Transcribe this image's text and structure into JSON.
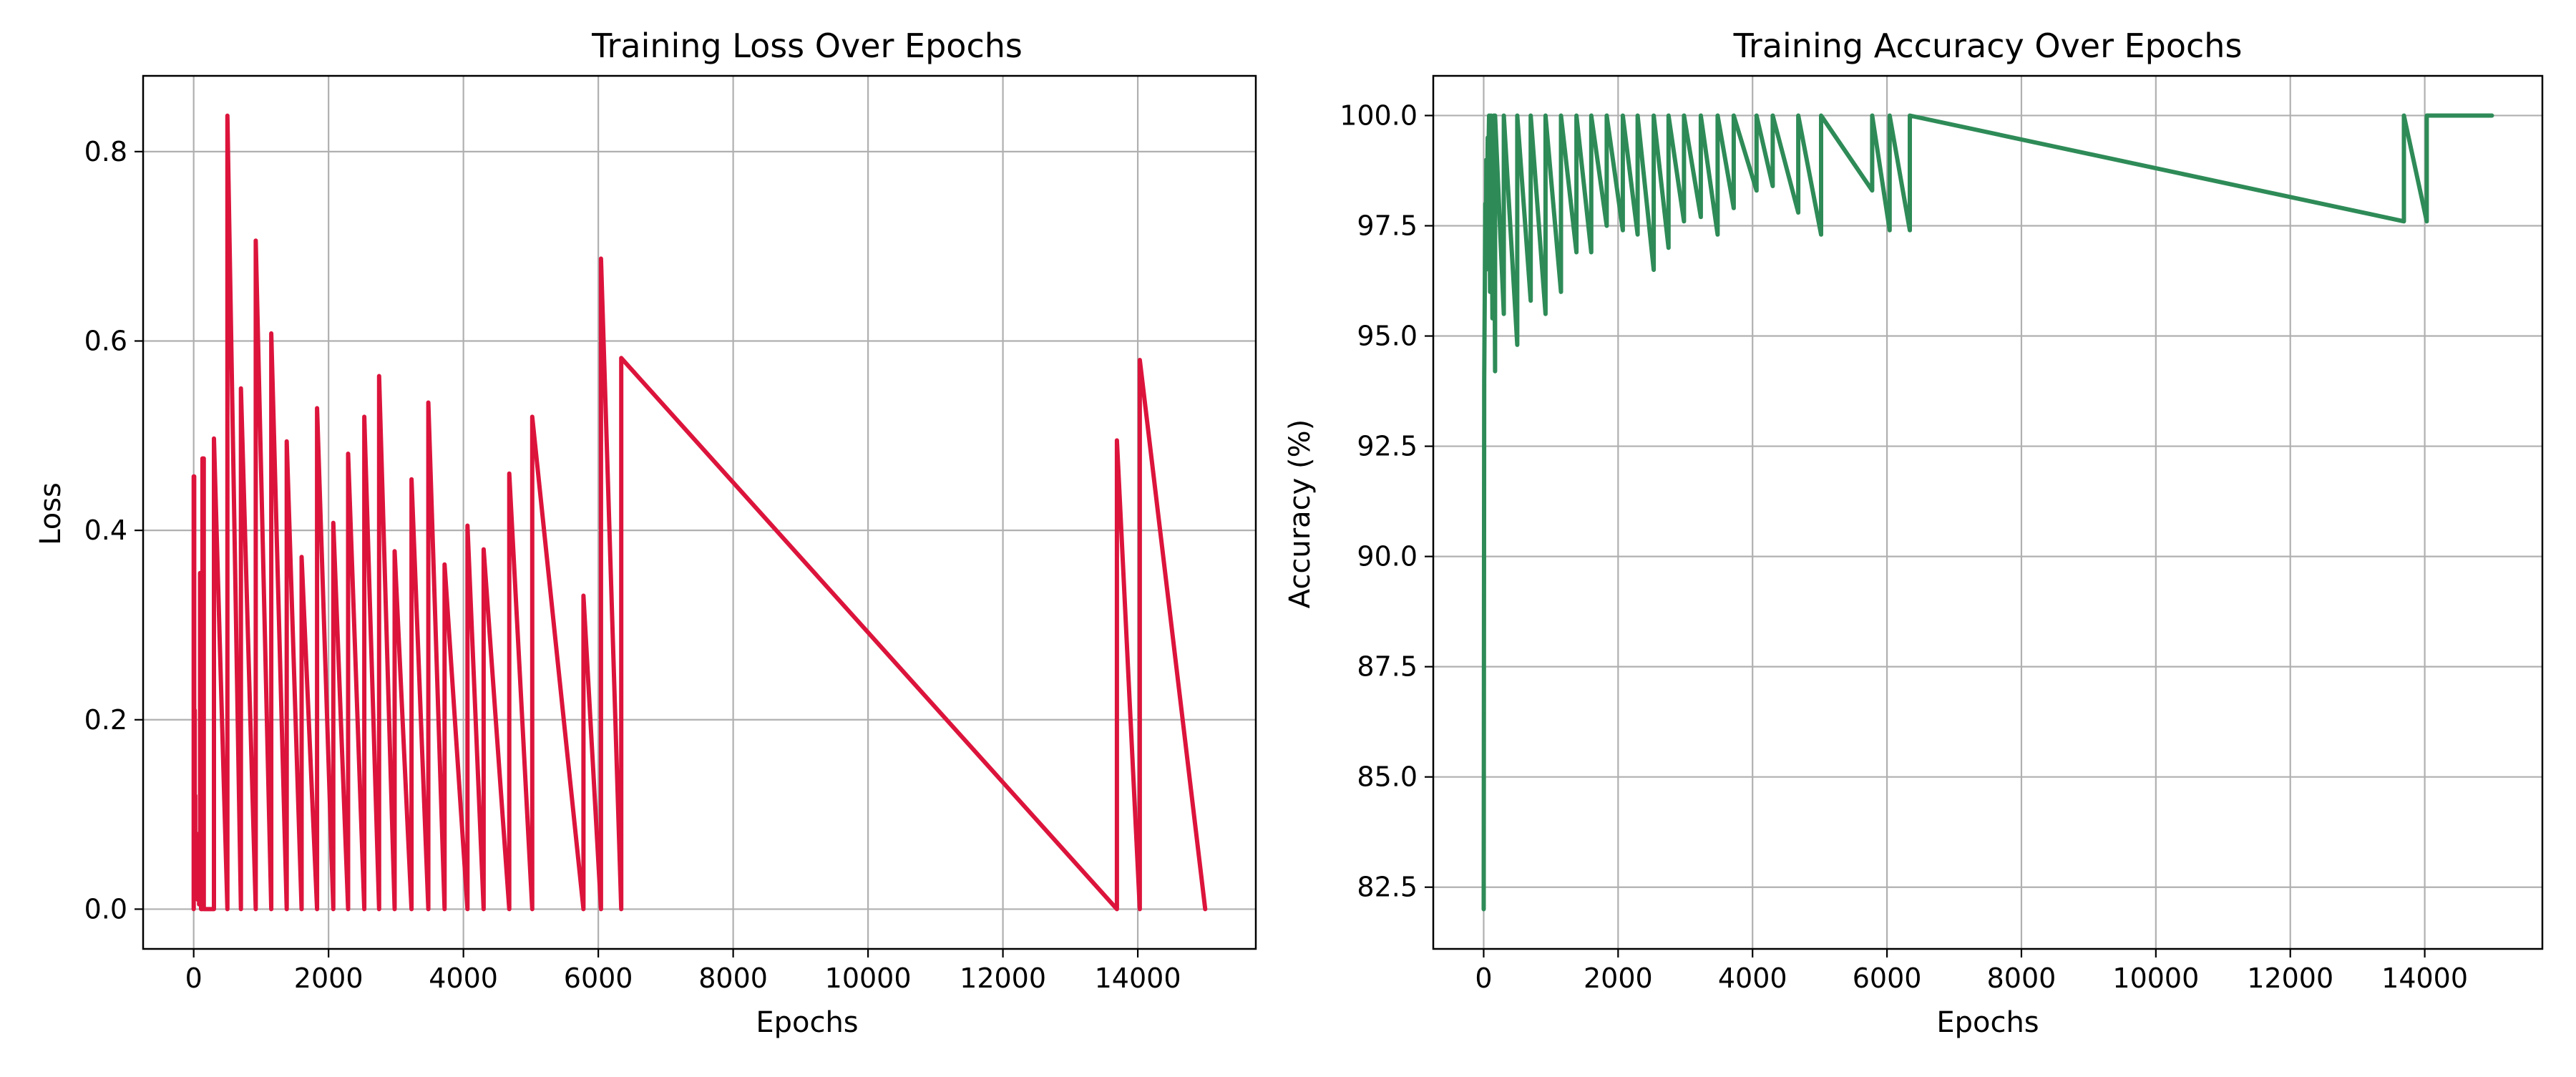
{
  "chart_data": [
    {
      "type": "line",
      "title": "Training Loss Over Epochs",
      "xlabel": "Epochs",
      "ylabel": "Loss",
      "xlim": [
        -750,
        15750
      ],
      "ylim": [
        -0.042,
        0.88
      ],
      "xticks": [
        0,
        2000,
        4000,
        6000,
        8000,
        10000,
        12000,
        14000
      ],
      "yticks": [
        0.0,
        0.2,
        0.4,
        0.6,
        0.8
      ],
      "ytick_labels": [
        "0.0",
        "0.2",
        "0.4",
        "0.6",
        "0.8"
      ],
      "grid": true,
      "color": "#dc143c",
      "series": [
        {
          "x": [
            0,
            0,
            8,
            8,
            16,
            16,
            24,
            24,
            32,
            32,
            40,
            40,
            50,
            50,
            60,
            60,
            70,
            70,
            80,
            80,
            95,
            95,
            110,
            110,
            130,
            130,
            150,
            150,
            170,
            170,
            300,
            300,
            500,
            500,
            700,
            700,
            920,
            920,
            1150,
            1150,
            1380,
            1380,
            1600,
            1600,
            1830,
            1830,
            2070,
            2070,
            2290,
            2290,
            2530,
            2530,
            2750,
            2750,
            2980,
            2980,
            3230,
            3230,
            3480,
            3480,
            3720,
            3720,
            4060,
            4060,
            4300,
            4300,
            4680,
            4680,
            5020,
            5020,
            5780,
            5780,
            6040,
            6040,
            6340,
            6340,
            13690,
            13690,
            14030,
            14030,
            15000
          ],
          "y": [
            0.0,
            0.457,
            0.457,
            0.21,
            0.21,
            0.12,
            0.12,
            0.06,
            0.06,
            0.08,
            0.08,
            0.03,
            0.03,
            0.05,
            0.05,
            0.01,
            0.01,
            0.02,
            0.02,
            0.005,
            0.005,
            0.355,
            0.355,
            0.0,
            0.0,
            0.476,
            0.476,
            0.0,
            0.0,
            0.0,
            0.0,
            0.497,
            0.0,
            0.838,
            0.0,
            0.55,
            0.0,
            0.706,
            0.0,
            0.608,
            0.0,
            0.494,
            0.0,
            0.372,
            0.0,
            0.529,
            0.0,
            0.408,
            0.0,
            0.481,
            0.0,
            0.52,
            0.0,
            0.563,
            0.0,
            0.378,
            0.0,
            0.454,
            0.0,
            0.535,
            0.0,
            0.364,
            0.0,
            0.405,
            0.0,
            0.38,
            0.0,
            0.46,
            0.0,
            0.52,
            0.0,
            0.331,
            0.0,
            0.687,
            0.0,
            0.582,
            0.0,
            0.495,
            0.0,
            0.58,
            0.0
          ]
        }
      ]
    },
    {
      "type": "line",
      "title": "Training Accuracy Over Epochs",
      "xlabel": "Epochs",
      "ylabel": "Accuracy (%)",
      "xlim": [
        -750,
        15750
      ],
      "ylim": [
        81.1,
        100.9
      ],
      "xticks": [
        0,
        2000,
        4000,
        6000,
        8000,
        10000,
        12000,
        14000
      ],
      "yticks": [
        82.5,
        85.0,
        87.5,
        90.0,
        92.5,
        95.0,
        97.5,
        100.0
      ],
      "ytick_labels": [
        "82.5",
        "85.0",
        "87.5",
        "90.0",
        "92.5",
        "95.0",
        "97.5",
        "100.0"
      ],
      "grid": true,
      "color": "#2e8b57",
      "series": [
        {
          "x": [
            0,
            0,
            8,
            8,
            16,
            16,
            24,
            24,
            32,
            32,
            40,
            40,
            50,
            50,
            60,
            60,
            70,
            70,
            80,
            80,
            95,
            95,
            110,
            110,
            130,
            130,
            150,
            150,
            170,
            170,
            300,
            300,
            500,
            500,
            700,
            700,
            920,
            920,
            1150,
            1150,
            1380,
            1380,
            1600,
            1600,
            1830,
            1830,
            2070,
            2070,
            2290,
            2290,
            2530,
            2530,
            2750,
            2750,
            2980,
            2980,
            3230,
            3230,
            3480,
            3480,
            3720,
            3720,
            4060,
            4060,
            4300,
            4300,
            4680,
            4680,
            5020,
            5020,
            5780,
            5780,
            6040,
            6040,
            6340,
            6340,
            13690,
            13690,
            14030,
            14030,
            15000
          ],
          "y": [
            82.0,
            82.0,
            94.0,
            94.0,
            96.0,
            96.0,
            98.0,
            98.0,
            96.5,
            96.5,
            99.0,
            99.0,
            98.0,
            98.0,
            99.5,
            99.5,
            99.0,
            99.0,
            100.0,
            100.0,
            96.0,
            96.0,
            100.0,
            100.0,
            95.4,
            95.4,
            100.0,
            100.0,
            94.2,
            100.0,
            95.5,
            100.0,
            94.8,
            100.0,
            95.8,
            100.0,
            95.5,
            100.0,
            96.0,
            100.0,
            96.9,
            100.0,
            96.9,
            100.0,
            97.5,
            100.0,
            97.4,
            100.0,
            97.3,
            100.0,
            96.5,
            100.0,
            97.0,
            100.0,
            97.6,
            100.0,
            97.7,
            100.0,
            97.3,
            100.0,
            97.9,
            100.0,
            98.3,
            100.0,
            98.4,
            100.0,
            97.8,
            100.0,
            97.3,
            100.0,
            98.3,
            100.0,
            97.4,
            100.0,
            97.4,
            100.0,
            97.6,
            100.0,
            97.6,
            100.0,
            100.0
          ]
        }
      ]
    }
  ]
}
